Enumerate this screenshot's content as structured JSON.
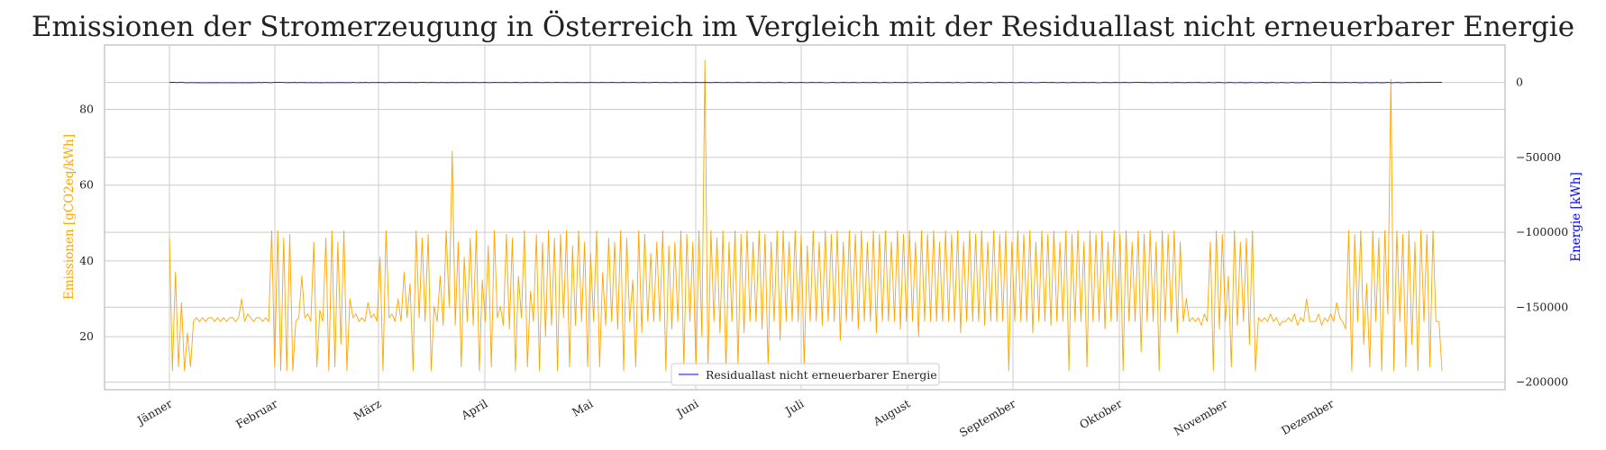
{
  "chart_data": {
    "type": "line",
    "title": "Emissionen der Stromerzeugung in Österreich im Vergleich mit der Residuallast nicht erneuerbarer Energie",
    "xlabel": "",
    "x_tick_labels": [
      "Jänner",
      "Februar",
      "März",
      "April",
      "Mai",
      "Juni",
      "Juli",
      "August",
      "September",
      "Oktober",
      "November",
      "Dezember"
    ],
    "y_left": {
      "label": "Emissionen [gCO2eq/kWh]",
      "color": "#ffa500",
      "ylim": [
        6,
        97
      ],
      "ticks": [
        20,
        40,
        60,
        80
      ],
      "tick_labels": [
        "20",
        "40",
        "60",
        "80"
      ]
    },
    "y_right": {
      "label": "Energie [kWh]",
      "color": "#0000ff",
      "ylim": [
        -205000,
        25000
      ],
      "ticks": [
        -200000,
        -150000,
        -100000,
        -50000,
        0
      ],
      "tick_labels": [
        "−200000",
        "−150000",
        "−100000",
        "−50000",
        "0"
      ]
    },
    "grid": true,
    "legend": {
      "placement": "lower-center",
      "entries": [
        "Residuallast nicht erneuerbarer Energie"
      ]
    },
    "series": [
      {
        "axis": "left",
        "color": "#ffa500",
        "sampling": "approximately 12-hourly, 1 January – 31 December",
        "values": [
          46,
          11,
          37,
          12,
          29,
          11,
          21,
          12,
          24,
          25,
          24,
          25,
          24,
          25,
          25,
          24,
          25,
          24,
          25,
          24,
          25,
          25,
          24,
          25,
          30,
          24,
          26,
          25,
          24,
          25,
          25,
          24,
          25,
          24,
          48,
          12,
          48,
          11,
          46,
          11,
          47,
          11,
          24,
          25,
          36,
          25,
          26,
          24,
          45,
          12,
          27,
          24,
          46,
          11,
          48,
          12,
          45,
          18,
          48,
          11,
          30,
          25,
          26,
          24,
          25,
          24,
          29,
          25,
          26,
          24,
          41,
          11,
          48,
          25,
          26,
          24,
          30,
          24,
          37,
          25,
          34,
          11,
          48,
          25,
          46,
          24,
          47,
          11,
          28,
          24,
          36,
          23,
          48,
          28,
          69,
          23,
          45,
          12,
          41,
          24,
          46,
          23,
          48,
          11,
          35,
          24,
          44,
          12,
          48,
          25,
          28,
          23,
          47,
          22,
          46,
          11,
          36,
          25,
          48,
          12,
          32,
          24,
          47,
          11,
          45,
          20,
          48,
          23,
          46,
          11,
          47,
          25,
          48,
          12,
          44,
          23,
          48,
          24,
          45,
          12,
          42,
          24,
          48,
          12,
          37,
          23,
          46,
          24,
          45,
          22,
          48,
          11,
          46,
          24,
          35,
          12,
          48,
          21,
          47,
          24,
          42,
          24,
          45,
          24,
          48,
          11,
          44,
          22,
          45,
          24,
          48,
          12,
          47,
          24,
          45,
          11,
          48,
          20,
          93,
          11,
          48,
          24,
          46,
          21,
          48,
          11,
          45,
          24,
          48,
          12,
          47,
          21,
          48,
          24,
          45,
          24,
          48,
          22,
          47,
          12,
          45,
          24,
          48,
          19,
          48,
          24,
          45,
          24,
          48,
          24,
          47,
          12,
          44,
          24,
          48,
          24,
          45,
          23,
          48,
          24,
          47,
          24,
          48,
          19,
          45,
          24,
          48,
          24,
          47,
          22,
          48,
          24,
          45,
          24,
          48,
          21,
          47,
          24,
          48,
          24,
          45,
          24,
          48,
          22,
          47,
          24,
          48,
          24,
          45,
          20,
          48,
          24,
          47,
          24,
          48,
          24,
          45,
          24,
          48,
          24,
          47,
          24,
          48,
          21,
          45,
          24,
          48,
          24,
          47,
          24,
          48,
          23,
          45,
          24,
          48,
          24,
          47,
          24,
          48,
          11,
          45,
          24,
          48,
          24,
          47,
          24,
          48,
          21,
          45,
          24,
          48,
          24,
          47,
          23,
          48,
          24,
          45,
          24,
          48,
          11,
          47,
          24,
          48,
          24,
          45,
          12,
          48,
          24,
          47,
          24,
          48,
          22,
          45,
          24,
          48,
          24,
          47,
          11,
          48,
          24,
          45,
          24,
          48,
          16,
          47,
          24,
          48,
          24,
          45,
          11,
          48,
          24,
          47,
          24,
          48,
          21,
          45,
          24,
          30,
          24,
          25,
          24,
          25,
          23,
          26,
          24,
          45,
          11,
          48,
          22,
          47,
          24,
          36,
          12,
          48,
          23,
          45,
          24,
          46,
          18,
          48,
          11,
          25,
          24,
          25,
          24,
          26,
          24,
          25,
          23,
          24,
          24,
          25,
          24,
          26,
          23,
          25,
          24,
          30,
          24,
          24,
          24,
          26,
          23,
          25,
          24,
          26,
          24,
          29,
          25,
          24,
          22,
          48,
          11,
          47,
          24,
          48,
          18,
          34,
          12,
          48,
          24,
          46,
          11,
          48,
          26,
          88,
          11,
          48,
          24,
          47,
          12,
          48,
          18,
          45,
          11,
          48,
          24,
          47,
          12,
          48,
          24,
          24,
          11
        ]
      },
      {
        "axis": "right",
        "color": "#0000ff",
        "name": "Residuallast nicht erneuerbarer Energie",
        "sampling": "approximately 12-hourly, 1 January – 31 December",
        "values": [
          5,
          -5,
          8,
          -80,
          5,
          4,
          -140,
          -165,
          -110,
          -95,
          -150,
          -120,
          -180,
          -140,
          -185,
          -160,
          -120,
          -175,
          -110,
          -155,
          -165,
          -145,
          -175,
          -150,
          -120,
          -185,
          -135,
          -155,
          -110,
          -170,
          -130,
          -195,
          -60,
          -175,
          -10,
          -140,
          5,
          -30,
          -100,
          -150,
          10,
          5,
          12,
          8,
          -45,
          -170,
          -60,
          -120,
          -10,
          -150,
          5,
          -90,
          -40,
          -180,
          -30,
          -140,
          -70,
          -150,
          -90,
          -170,
          -60,
          -180,
          -50,
          -190,
          -70,
          -110,
          -25,
          -190,
          -60,
          -180,
          5,
          -80,
          -150,
          -40,
          -120,
          5,
          -160,
          -30,
          -60,
          -100,
          5,
          -110,
          -20,
          -140,
          5,
          -70,
          -40,
          -120,
          5,
          -30,
          8,
          -20,
          5,
          -80,
          -30,
          -120,
          5,
          10,
          -20,
          -90,
          5,
          -40,
          -80,
          -100,
          5,
          -90,
          -40,
          -130,
          5,
          -100,
          -50,
          -110,
          5,
          -70,
          -60,
          -130,
          5,
          -50,
          -90,
          -100,
          5,
          -40,
          -110,
          -80,
          5,
          -60,
          -30,
          -120,
          5,
          -70,
          -110,
          -60,
          5,
          -40,
          -100,
          -80,
          5,
          -60,
          -110,
          -50,
          5,
          -70,
          -100,
          -90,
          5,
          -60,
          -110,
          -70,
          5,
          -50,
          -120,
          -60,
          5,
          -80,
          -110,
          -90,
          5,
          -60,
          -100,
          -50,
          -110,
          5,
          -70,
          -100,
          -80,
          5,
          -50,
          -110,
          -70,
          5,
          -60,
          -90,
          -100,
          5,
          -40,
          -120,
          -60,
          5,
          -70,
          -110,
          -80,
          5,
          -50,
          -100,
          -90,
          15,
          10,
          -40,
          -120,
          5,
          -60,
          -110,
          -80,
          5,
          -50,
          -120,
          -70,
          5,
          -60,
          -100,
          -90,
          5,
          -70,
          -110,
          -50,
          5,
          -80,
          -120,
          -60,
          5,
          -50,
          -110,
          -90,
          5,
          -60,
          -100,
          -70,
          5,
          -70,
          -120,
          -80,
          5,
          -50,
          -110,
          -60,
          5,
          -60,
          -130,
          -90,
          5,
          -80,
          -120,
          -70,
          5,
          -60,
          -140,
          -100,
          5,
          -70,
          -130,
          -80,
          5,
          -50,
          -150,
          -90,
          5,
          -60,
          -130,
          -70,
          5,
          -80,
          -140,
          -100,
          5,
          -70,
          -150,
          -90,
          5,
          -60,
          -120,
          -110,
          5,
          -70,
          -150,
          -100,
          5,
          -80,
          -130,
          -90,
          5,
          -60,
          -140,
          -120,
          5,
          -70,
          -150,
          -80,
          5,
          -60,
          -130,
          -110,
          5,
          -80,
          -140,
          -90,
          5,
          -50,
          -150,
          -100,
          5,
          -60,
          -130,
          -80,
          5,
          -70,
          -120,
          -90,
          5,
          -60,
          -160,
          -100,
          5,
          -80,
          -140,
          -90,
          5,
          -60,
          -130,
          -120,
          5,
          -70,
          -150,
          -100,
          5,
          -50,
          -140,
          -80,
          5,
          -60,
          -120,
          -110,
          5,
          -70,
          -150,
          -90,
          5,
          -60,
          -140,
          -120,
          5,
          -80,
          -160,
          -100,
          10,
          5,
          -40,
          -110,
          5,
          -60,
          -140,
          -80,
          5,
          -70,
          -150,
          -100,
          5,
          -60,
          -130,
          -90,
          10,
          -60,
          -110,
          -40,
          5,
          -80,
          -150,
          -120,
          5,
          -70,
          -130,
          -90,
          10,
          -50,
          -110,
          -60,
          12,
          -80,
          -130,
          -40,
          10,
          8,
          -20,
          -70,
          8,
          -110,
          -60,
          -140,
          5,
          -90,
          -120,
          -50,
          8,
          -100,
          -140,
          -70,
          5,
          -120,
          -80,
          -150,
          5,
          -90,
          -130,
          -60,
          5,
          -110,
          -150,
          -80,
          5,
          -100,
          -140,
          -70,
          5,
          -130,
          -170,
          -90,
          5,
          -110,
          -160,
          -120,
          5,
          -140,
          -100,
          -170,
          5,
          -130,
          -180,
          -110,
          5,
          -150,
          -120,
          -160,
          5,
          -120,
          -170,
          -100,
          5,
          -140,
          -180,
          -130,
          8,
          -150,
          -190,
          -160,
          5,
          -130,
          -170,
          -110,
          10,
          10,
          8,
          -30,
          5,
          -60,
          -90,
          -40,
          5,
          -150,
          -70,
          -160,
          10,
          -20,
          -170,
          -50,
          5,
          -180,
          -120,
          -160,
          8,
          -140,
          -100,
          -170,
          5,
          -160,
          -130,
          -190,
          5,
          -120,
          -150,
          -100,
          5,
          -170,
          -140,
          -80,
          5,
          -40,
          -60,
          -20,
          5,
          -70,
          -30,
          0,
          8,
          5,
          -30,
          5,
          -10,
          5
        ]
      }
    ]
  }
}
